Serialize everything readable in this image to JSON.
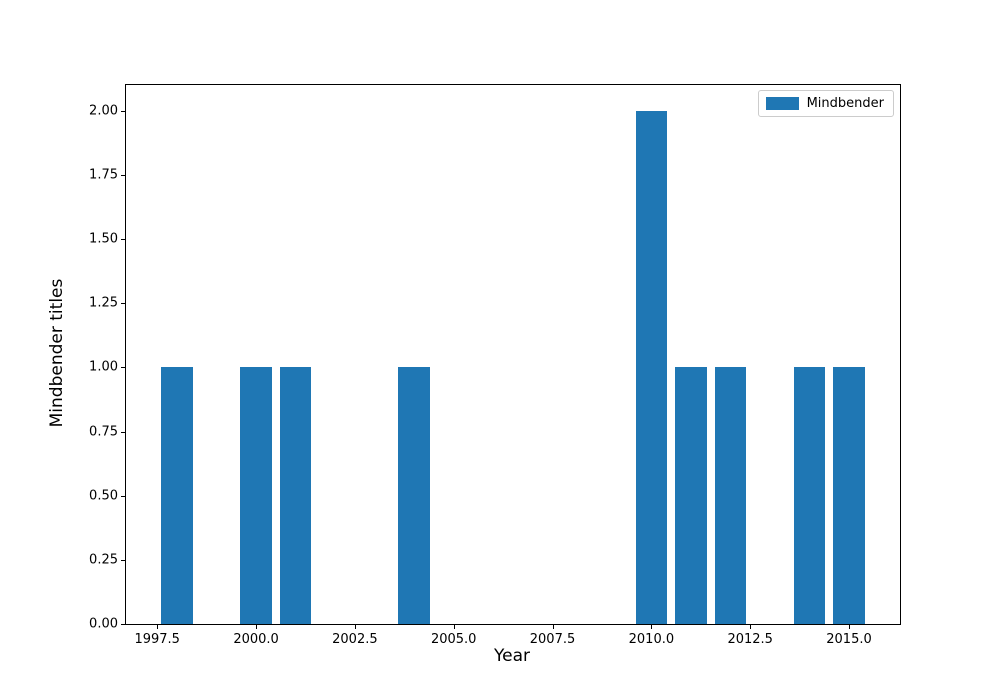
{
  "figure": {
    "background": "#ffffff",
    "spine_color": "#000000"
  },
  "chart_data": {
    "type": "bar",
    "title": "",
    "xlabel": "Year",
    "ylabel": "Mindbender titles",
    "x": [
      1998,
      2000,
      2001,
      2004,
      2010,
      2011,
      2012,
      2014,
      2015
    ],
    "values": [
      1,
      1,
      1,
      1,
      2,
      1,
      1,
      1,
      1
    ],
    "series_name": "Mindbender",
    "bar_width": 0.8,
    "bar_color": "#1f77b4",
    "xlim": [
      1996.71,
      2016.29
    ],
    "ylim": [
      0,
      2.1
    ],
    "grid": false,
    "xticks": {
      "values": [
        1997.5,
        2000.0,
        2002.5,
        2005.0,
        2007.5,
        2010.0,
        2012.5,
        2015.0
      ],
      "labels": [
        "1997.5",
        "2000.0",
        "2002.5",
        "2005.0",
        "2007.5",
        "2010.0",
        "2012.5",
        "2015.0"
      ]
    },
    "yticks": {
      "values": [
        0.0,
        0.25,
        0.5,
        0.75,
        1.0,
        1.25,
        1.5,
        1.75,
        2.0
      ],
      "labels": [
        "0.00",
        "0.25",
        "0.50",
        "0.75",
        "1.00",
        "1.25",
        "1.50",
        "1.75",
        "2.00"
      ]
    },
    "legend": {
      "position": "upper right",
      "entries": [
        {
          "label": "Mindbender",
          "color": "#1f77b4"
        }
      ]
    }
  }
}
